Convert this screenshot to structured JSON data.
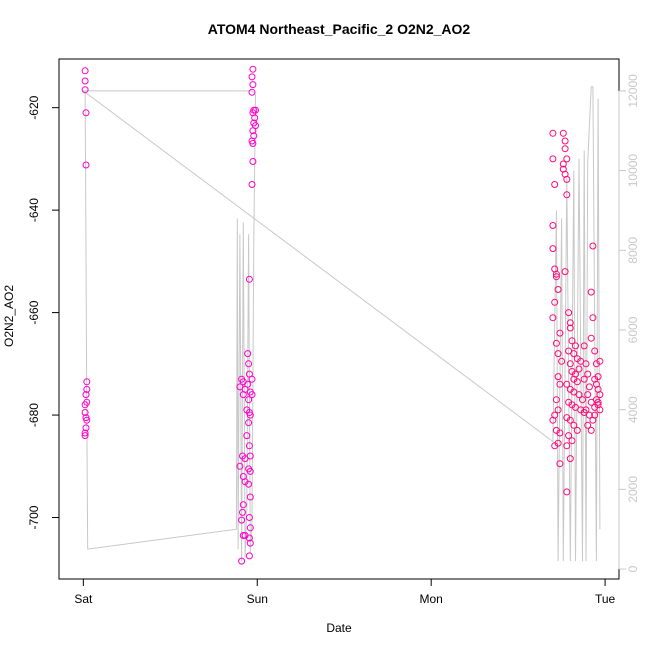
{
  "chart_data": {
    "type": "scatter",
    "title": "ATOM4 Northeast_Pacific_2 O2N2_AO2",
    "xlabel": "Date",
    "ylabel": "O2N2_AO2",
    "x_ticks": [
      "Sat",
      "Sun",
      "Mon",
      "Tue"
    ],
    "x_tick_positions_days": [
      0,
      1,
      2,
      3
    ],
    "xlim_days": [
      -0.14,
      3.08
    ],
    "ylim": [
      -712,
      -610.5
    ],
    "y_ticks": [
      -700,
      -680,
      -660,
      -640,
      -620
    ],
    "y2lim": [
      -250,
      12800
    ],
    "y2_ticks": [
      0,
      2000,
      4000,
      6000,
      8000,
      10000,
      12000
    ],
    "grid": false,
    "colors": {
      "points": "#ff00cc",
      "points_late": "#ff0a7a",
      "line": "#c8c8c8",
      "axis": "#000000",
      "right_axis": "#c8c8c8"
    },
    "series": [
      {
        "name": "",
        "axis": "left",
        "marker": "open-circle",
        "points": [
          [
            0.01,
            -612.8
          ],
          [
            0.01,
            -614.8
          ],
          [
            0.01,
            -616.5
          ],
          [
            0.015,
            -621
          ],
          [
            0.015,
            -631.2
          ],
          [
            0.02,
            -673.5
          ],
          [
            0.02,
            -675
          ],
          [
            0.02,
            -677.5
          ],
          [
            0.015,
            -676
          ],
          [
            0.01,
            -678
          ],
          [
            0.01,
            -679.5
          ],
          [
            0.015,
            -680.5
          ],
          [
            0.02,
            -681
          ],
          [
            0.015,
            -682.5
          ],
          [
            0.01,
            -683.5
          ],
          [
            0.01,
            -684
          ],
          [
            0.91,
            -673
          ],
          [
            0.92,
            -673.5
          ],
          [
            0.9,
            -674.5
          ],
          [
            0.93,
            -675
          ],
          [
            0.92,
            -676
          ],
          [
            0.915,
            -688
          ],
          [
            0.93,
            -688.5
          ],
          [
            0.9,
            -690
          ],
          [
            0.92,
            -692
          ],
          [
            0.93,
            -693
          ],
          [
            0.92,
            -697.5
          ],
          [
            0.915,
            -699
          ],
          [
            0.91,
            -700.5
          ],
          [
            0.92,
            -703.5
          ],
          [
            0.93,
            -703.5
          ],
          [
            0.91,
            -708.5
          ],
          [
            0.945,
            -668
          ],
          [
            0.95,
            -670
          ],
          [
            0.955,
            -672
          ],
          [
            0.945,
            -674
          ],
          [
            0.96,
            -675.5
          ],
          [
            0.95,
            -677
          ],
          [
            0.94,
            -679
          ],
          [
            0.955,
            -679.5
          ],
          [
            0.96,
            -680
          ],
          [
            0.95,
            -681.5
          ],
          [
            0.94,
            -684
          ],
          [
            0.955,
            -686
          ],
          [
            0.96,
            -688
          ],
          [
            0.95,
            -690.5
          ],
          [
            0.96,
            -691
          ],
          [
            0.95,
            -693.5
          ],
          [
            0.96,
            -696
          ],
          [
            0.955,
            -700
          ],
          [
            0.96,
            -702
          ],
          [
            0.955,
            -704
          ],
          [
            0.96,
            -705
          ],
          [
            0.955,
            -707.5
          ],
          [
            0.955,
            -653.5
          ],
          [
            0.97,
            -676
          ],
          [
            0.97,
            -673
          ],
          [
            0.975,
            -612.5
          ],
          [
            0.97,
            -614
          ],
          [
            0.975,
            -615.5
          ],
          [
            0.97,
            -617
          ],
          [
            0.98,
            -620.5
          ],
          [
            0.975,
            -621
          ],
          [
            0.99,
            -620.5
          ],
          [
            0.985,
            -622
          ],
          [
            0.98,
            -623
          ],
          [
            0.99,
            -623.5
          ],
          [
            0.975,
            -624.5
          ],
          [
            0.98,
            -625.5
          ],
          [
            0.97,
            -626.5
          ],
          [
            0.975,
            -627
          ],
          [
            0.975,
            -630.5
          ],
          [
            0.97,
            -635
          ],
          [
            2.7,
            -625
          ],
          [
            2.7,
            -630
          ],
          [
            2.71,
            -635
          ],
          [
            2.7,
            -643
          ],
          [
            2.7,
            -647.5
          ],
          [
            2.71,
            -651.5
          ],
          [
            2.72,
            -652.5
          ],
          [
            2.72,
            -653
          ],
          [
            2.73,
            -655.5
          ],
          [
            2.71,
            -658
          ],
          [
            2.7,
            -661
          ],
          [
            2.74,
            -664
          ],
          [
            2.72,
            -666
          ],
          [
            2.73,
            -668
          ],
          [
            2.75,
            -669.5
          ],
          [
            2.73,
            -672.5
          ],
          [
            2.74,
            -674
          ],
          [
            2.72,
            -677
          ],
          [
            2.73,
            -679
          ],
          [
            2.71,
            -680
          ],
          [
            2.7,
            -681
          ],
          [
            2.72,
            -683
          ],
          [
            2.74,
            -683.5
          ],
          [
            2.73,
            -685.5
          ],
          [
            2.71,
            -686
          ],
          [
            2.74,
            -689.5
          ],
          [
            2.76,
            -625
          ],
          [
            2.77,
            -626.5
          ],
          [
            2.77,
            -628
          ],
          [
            2.78,
            -630
          ],
          [
            2.76,
            -631
          ],
          [
            2.77,
            -633
          ],
          [
            2.78,
            -634
          ],
          [
            2.76,
            -632
          ],
          [
            2.78,
            -637
          ],
          [
            2.77,
            -652
          ],
          [
            2.79,
            -660
          ],
          [
            2.8,
            -662
          ],
          [
            2.8,
            -663
          ],
          [
            2.81,
            -665.5
          ],
          [
            2.79,
            -667.5
          ],
          [
            2.82,
            -668
          ],
          [
            2.83,
            -666.5
          ],
          [
            2.84,
            -669
          ],
          [
            2.85,
            -671
          ],
          [
            2.86,
            -669.5
          ],
          [
            2.8,
            -670
          ],
          [
            2.81,
            -671.5
          ],
          [
            2.83,
            -672
          ],
          [
            2.82,
            -673
          ],
          [
            2.84,
            -673.5
          ],
          [
            2.78,
            -674
          ],
          [
            2.8,
            -675
          ],
          [
            2.82,
            -675.5
          ],
          [
            2.85,
            -676
          ],
          [
            2.87,
            -677
          ],
          [
            2.79,
            -677.5
          ],
          [
            2.81,
            -678
          ],
          [
            2.83,
            -678.5
          ],
          [
            2.86,
            -679
          ],
          [
            2.88,
            -679.5
          ],
          [
            2.78,
            -680.5
          ],
          [
            2.8,
            -681
          ],
          [
            2.82,
            -682
          ],
          [
            2.84,
            -683
          ],
          [
            2.79,
            -684
          ],
          [
            2.81,
            -685
          ],
          [
            2.78,
            -686
          ],
          [
            2.8,
            -688.5
          ],
          [
            2.78,
            -695
          ],
          [
            2.88,
            -666.5
          ],
          [
            2.89,
            -670
          ],
          [
            2.9,
            -672
          ],
          [
            2.88,
            -673
          ],
          [
            2.91,
            -674.5
          ],
          [
            2.9,
            -676
          ],
          [
            2.92,
            -677.5
          ],
          [
            2.89,
            -679
          ],
          [
            2.91,
            -680
          ],
          [
            2.93,
            -681
          ],
          [
            2.9,
            -682
          ],
          [
            2.92,
            -683
          ],
          [
            2.94,
            -667.5
          ],
          [
            2.95,
            -670
          ],
          [
            2.96,
            -672.5
          ],
          [
            2.94,
            -673
          ],
          [
            2.95,
            -674
          ],
          [
            2.96,
            -675
          ],
          [
            2.97,
            -676
          ],
          [
            2.95,
            -677
          ],
          [
            2.96,
            -678
          ],
          [
            2.97,
            -679
          ],
          [
            2.94,
            -680
          ],
          [
            2.93,
            -647
          ],
          [
            2.92,
            -656
          ],
          [
            2.93,
            -661
          ],
          [
            2.97,
            -669.5
          ],
          [
            2.92,
            -665
          ],
          [
            2.96,
            -677.5
          ],
          [
            2.94,
            -678.5
          ]
        ]
      },
      {
        "name": "",
        "axis": "right",
        "marker": "line",
        "points": [
          [
            0.0,
            12000
          ],
          [
            0.01,
            11950
          ],
          [
            0.015,
            8000
          ],
          [
            0.02,
            3800
          ],
          [
            0.025,
            500
          ],
          [
            0.88,
            1000
          ],
          [
            0.885,
            8800
          ],
          [
            0.89,
            500
          ],
          [
            0.9,
            8400
          ],
          [
            0.91,
            200
          ],
          [
            0.92,
            8700
          ],
          [
            0.93,
            300
          ],
          [
            0.94,
            1500
          ],
          [
            0.95,
            8400
          ],
          [
            0.96,
            400
          ],
          [
            0.97,
            1200
          ],
          [
            0.98,
            8300
          ],
          [
            0.99,
            11900
          ],
          [
            0.97,
            12000
          ],
          [
            0.0,
            12000
          ],
          [
            2.7,
            3200
          ],
          [
            2.72,
            9000
          ],
          [
            2.73,
            200
          ],
          [
            2.75,
            8800
          ],
          [
            2.76,
            200
          ],
          [
            2.78,
            9800
          ],
          [
            2.8,
            200
          ],
          [
            2.82,
            10000
          ],
          [
            2.83,
            200
          ],
          [
            2.85,
            10300
          ],
          [
            2.87,
            200
          ],
          [
            2.88,
            10500
          ],
          [
            2.89,
            200
          ],
          [
            2.9,
            10200
          ],
          [
            2.92,
            12100
          ],
          [
            2.93,
            12100
          ],
          [
            2.95,
            200
          ],
          [
            2.96,
            11800
          ],
          [
            2.97,
            1000
          ]
        ]
      }
    ]
  }
}
